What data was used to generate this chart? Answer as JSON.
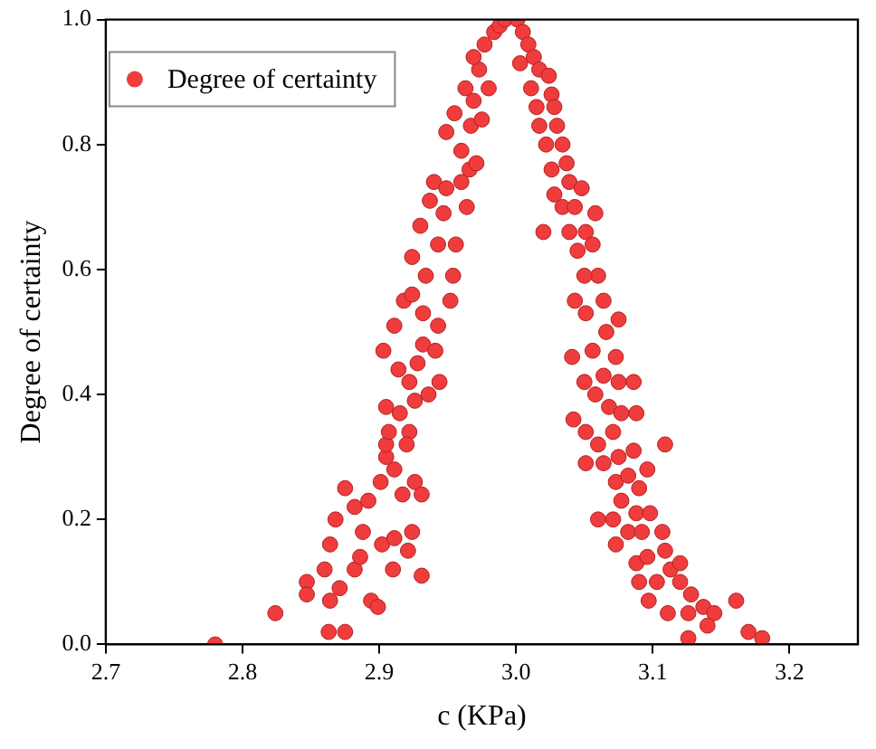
{
  "chart_data": {
    "type": "scatter",
    "xlabel": "c (KPa)",
    "ylabel": "Degree of certainty",
    "legend": "top left",
    "marker": "circle",
    "grid": false,
    "xlim": [
      2.7,
      3.25
    ],
    "xticks": [
      2.7,
      2.8,
      2.9,
      {
        "value": 3,
        "label": "3.0"
      },
      3.1,
      3.2
    ],
    "ylim": [
      0,
      1
    ],
    "yticks": [
      {
        "value": 0,
        "label": "0.0"
      },
      0.2,
      0.4,
      0.6,
      0.8,
      {
        "value": 1,
        "label": "1.0"
      }
    ],
    "series": [
      {
        "name": "Degree of certainty",
        "color": "#f03c3c",
        "x": [
          2.78,
          2.824,
          2.863,
          2.875,
          2.847,
          2.847,
          2.86,
          2.864,
          2.871,
          2.864,
          2.868,
          2.875,
          2.882,
          2.886,
          2.888,
          2.894,
          2.899,
          2.882,
          2.892,
          2.902,
          2.911,
          2.91,
          2.921,
          2.924,
          2.931,
          2.901,
          2.905,
          2.911,
          2.917,
          2.926,
          2.931,
          2.905,
          2.905,
          2.907,
          2.915,
          2.922,
          2.926,
          2.92,
          2.903,
          2.911,
          2.914,
          2.922,
          2.928,
          2.936,
          2.944,
          2.932,
          2.943,
          2.918,
          2.924,
          2.932,
          2.941,
          2.952,
          2.924,
          2.93,
          2.937,
          2.943,
          2.947,
          2.954,
          2.956,
          2.934,
          2.94,
          2.949,
          2.964,
          2.96,
          2.966,
          2.949,
          2.955,
          2.96,
          2.967,
          2.969,
          2.963,
          2.973,
          2.969,
          2.977,
          2.984,
          2.988,
          2.98,
          2.975,
          2.971,
          2.992,
          3.001,
          3.005,
          3.009,
          3.003,
          3.013,
          3.017,
          3.011,
          3.024,
          3.026,
          3.015,
          3.028,
          3.017,
          3.03,
          3.022,
          3.034,
          3.037,
          3.026,
          3.039,
          3.028,
          3.048,
          3.034,
          3.043,
          3.02,
          3.058,
          3.039,
          3.051,
          3.045,
          3.056,
          3.06,
          3.05,
          3.043,
          3.051,
          3.064,
          3.075,
          3.041,
          3.056,
          3.066,
          3.073,
          3.05,
          3.064,
          3.075,
          3.086,
          3.058,
          3.068,
          3.077,
          3.088,
          3.042,
          3.051,
          3.06,
          3.071,
          3.109,
          3.051,
          3.064,
          3.075,
          3.086,
          3.096,
          3.073,
          3.082,
          3.077,
          3.09,
          3.06,
          3.071,
          3.088,
          3.098,
          3.073,
          3.082,
          3.092,
          3.107,
          3.088,
          3.096,
          3.109,
          3.09,
          3.103,
          3.113,
          3.12,
          3.12,
          3.128,
          3.097,
          3.111,
          3.126,
          3.137,
          3.145,
          3.14,
          3.126,
          3.161,
          3.17,
          3.18
        ],
        "values": [
          0.0,
          0.05,
          0.02,
          0.02,
          0.1,
          0.08,
          0.12,
          0.07,
          0.09,
          0.16,
          0.2,
          0.25,
          0.12,
          0.14,
          0.18,
          0.07,
          0.06,
          0.22,
          0.23,
          0.16,
          0.17,
          0.12,
          0.15,
          0.18,
          0.11,
          0.26,
          0.3,
          0.28,
          0.24,
          0.26,
          0.24,
          0.32,
          0.38,
          0.34,
          0.37,
          0.34,
          0.39,
          0.32,
          0.47,
          0.51,
          0.44,
          0.42,
          0.45,
          0.4,
          0.42,
          0.48,
          0.51,
          0.55,
          0.56,
          0.53,
          0.47,
          0.55,
          0.62,
          0.67,
          0.71,
          0.64,
          0.69,
          0.59,
          0.64,
          0.59,
          0.74,
          0.73,
          0.7,
          0.74,
          0.76,
          0.82,
          0.85,
          0.79,
          0.83,
          0.87,
          0.89,
          0.92,
          0.94,
          0.96,
          0.98,
          0.99,
          0.89,
          0.84,
          0.77,
          1.0,
          1.0,
          0.98,
          0.96,
          0.93,
          0.94,
          0.92,
          0.89,
          0.91,
          0.88,
          0.86,
          0.86,
          0.83,
          0.83,
          0.8,
          0.8,
          0.77,
          0.76,
          0.74,
          0.72,
          0.73,
          0.7,
          0.7,
          0.66,
          0.69,
          0.66,
          0.66,
          0.63,
          0.64,
          0.59,
          0.59,
          0.55,
          0.53,
          0.55,
          0.52,
          0.46,
          0.47,
          0.5,
          0.46,
          0.42,
          0.43,
          0.42,
          0.42,
          0.4,
          0.38,
          0.37,
          0.37,
          0.36,
          0.34,
          0.32,
          0.34,
          0.32,
          0.29,
          0.29,
          0.3,
          0.31,
          0.28,
          0.26,
          0.27,
          0.23,
          0.25,
          0.2,
          0.2,
          0.21,
          0.21,
          0.16,
          0.18,
          0.18,
          0.18,
          0.13,
          0.14,
          0.15,
          0.1,
          0.1,
          0.12,
          0.13,
          0.1,
          0.08,
          0.07,
          0.05,
          0.05,
          0.06,
          0.05,
          0.03,
          0.01,
          0.07,
          0.02,
          0.01
        ]
      }
    ]
  }
}
